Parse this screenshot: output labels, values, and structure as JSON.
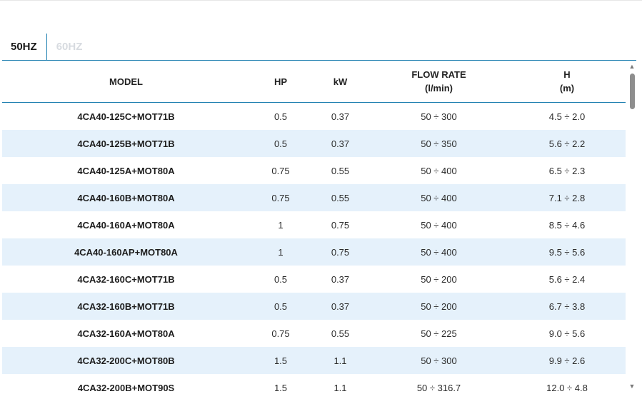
{
  "tabs": [
    {
      "label": "50HZ",
      "active": true
    },
    {
      "label": "60HZ",
      "active": false
    }
  ],
  "table": {
    "headers": {
      "model": "MODEL",
      "hp": "HP",
      "kw": "kW",
      "flow_title": "FLOW RATE",
      "flow_unit": "(l/min)",
      "h_title": "H",
      "h_unit": "(m)"
    },
    "rows": [
      {
        "model": "4CA40-125C+MOT71B",
        "hp": "0.5",
        "kw": "0.37",
        "flow": "50 ÷ 300",
        "h": "4.5 ÷ 2.0"
      },
      {
        "model": "4CA40-125B+MOT71B",
        "hp": "0.5",
        "kw": "0.37",
        "flow": "50 ÷ 350",
        "h": "5.6 ÷ 2.2"
      },
      {
        "model": "4CA40-125A+MOT80A",
        "hp": "0.75",
        "kw": "0.55",
        "flow": "50 ÷ 400",
        "h": "6.5 ÷ 2.3"
      },
      {
        "model": "4CA40-160B+MOT80A",
        "hp": "0.75",
        "kw": "0.55",
        "flow": "50 ÷ 400",
        "h": "7.1 ÷ 2.8"
      },
      {
        "model": "4CA40-160A+MOT80A",
        "hp": "1",
        "kw": "0.75",
        "flow": "50 ÷ 400",
        "h": "8.5 ÷ 4.6"
      },
      {
        "model": "4CA40-160AP+MOT80A",
        "hp": "1",
        "kw": "0.75",
        "flow": "50 ÷ 400",
        "h": "9.5 ÷ 5.6"
      },
      {
        "model": "4CA32-160C+MOT71B",
        "hp": "0.5",
        "kw": "0.37",
        "flow": "50 ÷ 200",
        "h": "5.6 ÷ 2.4"
      },
      {
        "model": "4CA32-160B+MOT71B",
        "hp": "0.5",
        "kw": "0.37",
        "flow": "50 ÷ 200",
        "h": "6.7 ÷ 3.8"
      },
      {
        "model": "4CA32-160A+MOT80A",
        "hp": "0.75",
        "kw": "0.55",
        "flow": "50 ÷ 225",
        "h": "9.0 ÷ 5.6"
      },
      {
        "model": "4CA32-200C+MOT80B",
        "hp": "1.5",
        "kw": "1.1",
        "flow": "50 ÷ 300",
        "h": "9.9 ÷ 2.6"
      },
      {
        "model": "4CA32-200B+MOT90S",
        "hp": "1.5",
        "kw": "1.1",
        "flow": "50 ÷ 316.7",
        "h": "12.0 ÷ 4.8"
      }
    ]
  },
  "scrollbar": {
    "up_icon": "triangle-up",
    "down_icon": "triangle-down"
  },
  "colors": {
    "accent": "#1e7fb0",
    "row_stripe": "#e5f1fb",
    "inactive_tab": "#d7dbe0"
  }
}
